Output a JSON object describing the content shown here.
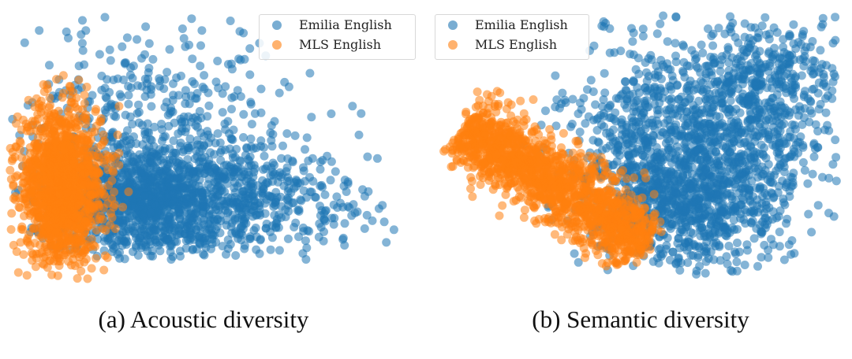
{
  "chart_data": [
    {
      "type": "scatter",
      "caption": "(a) Acoustic diversity",
      "axes": "hidden",
      "grid": false,
      "legend_position": "top-right",
      "series": [
        {
          "name": "Emilia English",
          "color": "#1f77b4"
        },
        {
          "name": "MLS English",
          "color": "#ff7f0e"
        }
      ]
    },
    {
      "type": "scatter",
      "caption": "(b) Semantic diversity",
      "axes": "hidden",
      "grid": false,
      "legend_position": "top-left",
      "series": [
        {
          "name": "Emilia English",
          "color": "#1f77b4"
        },
        {
          "name": "MLS English",
          "color": "#ff7f0e"
        }
      ]
    }
  ]
}
